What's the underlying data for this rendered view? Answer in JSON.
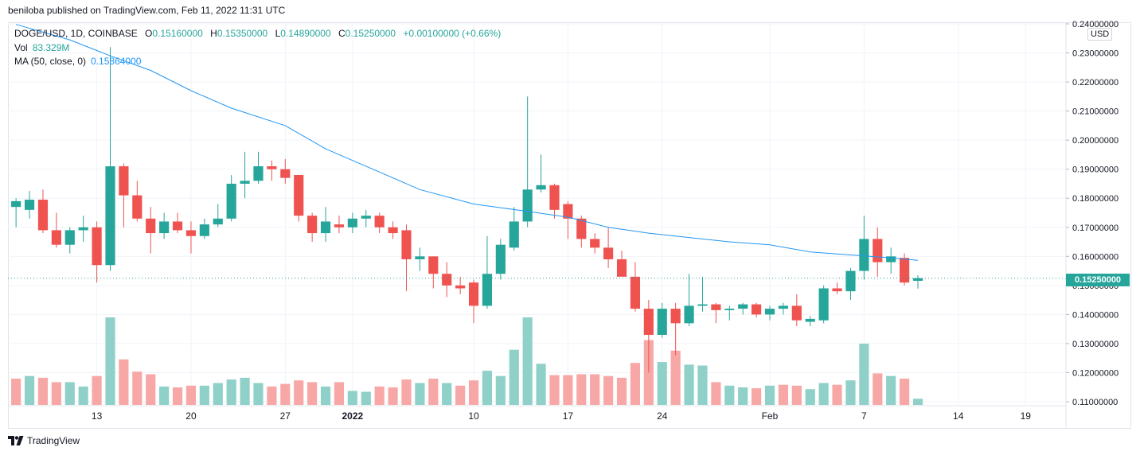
{
  "publisher_text": "beniloba published on TradingView.com, Feb 11, 2022 11:31 UTC",
  "brand_text": "TradingView",
  "currency_label": "USD",
  "current_price_label": "0.15250000",
  "legend": {
    "symbol": "DOGE/USD, 1D, COINBASE",
    "o_label": "O",
    "o_value": "0.15160000",
    "h_label": "H",
    "h_value": "0.15350000",
    "l_label": "L",
    "l_value": "0.14890000",
    "c_label": "C",
    "c_value": "0.15250000",
    "change": "+0.00100000 (+0.66%)",
    "vol_label": "Vol",
    "vol_value": "83.329M",
    "ma_label": "MA (50, close, 0)",
    "ma_value": "0.15864000"
  },
  "colors": {
    "up": "#26a69a",
    "down": "#ef5350",
    "up_vol": "#8fd0c9",
    "down_vol": "#f7a8a6",
    "ma": "#2196f3",
    "grid": "#f0f3fa",
    "axis": "#e0e3eb"
  },
  "chart_data": {
    "type": "candlestick",
    "title": "DOGE/USD, 1D, COINBASE",
    "ylim": [
      0.11,
      0.24
    ],
    "y_ticks": [
      "0.11000000",
      "0.12000000",
      "0.13000000",
      "0.14000000",
      "0.15000000",
      "0.16000000",
      "0.17000000",
      "0.18000000",
      "0.19000000",
      "0.20000000",
      "0.21000000",
      "0.22000000",
      "0.23000000",
      "0.24000000"
    ],
    "y_tick_values": [
      0.11,
      0.12,
      0.13,
      0.14,
      0.15,
      0.16,
      0.17,
      0.18,
      0.19,
      0.2,
      0.21,
      0.22,
      0.23,
      0.24
    ],
    "x_ticks": [
      {
        "label": "13",
        "index": 6
      },
      {
        "label": "20",
        "index": 13
      },
      {
        "label": "27",
        "index": 20
      },
      {
        "label": "2022",
        "index": 25
      },
      {
        "label": "10",
        "index": 34
      },
      {
        "label": "17",
        "index": 41
      },
      {
        "label": "24",
        "index": 48
      },
      {
        "label": "Feb",
        "index": 56
      },
      {
        "label": "7",
        "index": 63
      },
      {
        "label": "14",
        "index": 70
      },
      {
        "label": "19",
        "index": 75
      }
    ],
    "x_range": [
      -0.6,
      78
    ],
    "candles": [
      {
        "o": 0.177,
        "h": 0.18,
        "l": 0.17,
        "c": 0.179
      },
      {
        "o": 0.176,
        "h": 0.1825,
        "l": 0.173,
        "c": 0.1795
      },
      {
        "o": 0.1795,
        "h": 0.183,
        "l": 0.168,
        "c": 0.169
      },
      {
        "o": 0.169,
        "h": 0.175,
        "l": 0.163,
        "c": 0.164
      },
      {
        "o": 0.164,
        "h": 0.17,
        "l": 0.161,
        "c": 0.169
      },
      {
        "o": 0.169,
        "h": 0.174,
        "l": 0.165,
        "c": 0.17
      },
      {
        "o": 0.17,
        "h": 0.172,
        "l": 0.151,
        "c": 0.157
      },
      {
        "o": 0.157,
        "h": 0.232,
        "l": 0.155,
        "c": 0.191
      },
      {
        "o": 0.191,
        "h": 0.192,
        "l": 0.17,
        "c": 0.181
      },
      {
        "o": 0.181,
        "h": 0.186,
        "l": 0.172,
        "c": 0.173
      },
      {
        "o": 0.173,
        "h": 0.177,
        "l": 0.161,
        "c": 0.168
      },
      {
        "o": 0.168,
        "h": 0.175,
        "l": 0.166,
        "c": 0.172
      },
      {
        "o": 0.172,
        "h": 0.175,
        "l": 0.168,
        "c": 0.169
      },
      {
        "o": 0.169,
        "h": 0.172,
        "l": 0.161,
        "c": 0.167
      },
      {
        "o": 0.167,
        "h": 0.173,
        "l": 0.166,
        "c": 0.171
      },
      {
        "o": 0.171,
        "h": 0.178,
        "l": 0.17,
        "c": 0.173
      },
      {
        "o": 0.173,
        "h": 0.188,
        "l": 0.172,
        "c": 0.185
      },
      {
        "o": 0.185,
        "h": 0.196,
        "l": 0.18,
        "c": 0.186
      },
      {
        "o": 0.186,
        "h": 0.196,
        "l": 0.185,
        "c": 0.191
      },
      {
        "o": 0.191,
        "h": 0.193,
        "l": 0.186,
        "c": 0.19
      },
      {
        "o": 0.19,
        "h": 0.1935,
        "l": 0.185,
        "c": 0.187
      },
      {
        "o": 0.188,
        "h": 0.188,
        "l": 0.172,
        "c": 0.174
      },
      {
        "o": 0.174,
        "h": 0.175,
        "l": 0.165,
        "c": 0.168
      },
      {
        "o": 0.168,
        "h": 0.177,
        "l": 0.165,
        "c": 0.172
      },
      {
        "o": 0.171,
        "h": 0.174,
        "l": 0.168,
        "c": 0.17
      },
      {
        "o": 0.17,
        "h": 0.175,
        "l": 0.168,
        "c": 0.173
      },
      {
        "o": 0.173,
        "h": 0.176,
        "l": 0.17,
        "c": 0.174
      },
      {
        "o": 0.174,
        "h": 0.175,
        "l": 0.168,
        "c": 0.17
      },
      {
        "o": 0.17,
        "h": 0.172,
        "l": 0.166,
        "c": 0.168
      },
      {
        "o": 0.169,
        "h": 0.171,
        "l": 0.148,
        "c": 0.159
      },
      {
        "o": 0.159,
        "h": 0.163,
        "l": 0.155,
        "c": 0.16
      },
      {
        "o": 0.16,
        "h": 0.16,
        "l": 0.149,
        "c": 0.154
      },
      {
        "o": 0.154,
        "h": 0.158,
        "l": 0.146,
        "c": 0.15
      },
      {
        "o": 0.15,
        "h": 0.153,
        "l": 0.147,
        "c": 0.149
      },
      {
        "o": 0.151,
        "h": 0.152,
        "l": 0.137,
        "c": 0.143
      },
      {
        "o": 0.143,
        "h": 0.167,
        "l": 0.142,
        "c": 0.154
      },
      {
        "o": 0.154,
        "h": 0.166,
        "l": 0.152,
        "c": 0.164
      },
      {
        "o": 0.163,
        "h": 0.177,
        "l": 0.162,
        "c": 0.172
      },
      {
        "o": 0.172,
        "h": 0.215,
        "l": 0.17,
        "c": 0.183
      },
      {
        "o": 0.183,
        "h": 0.195,
        "l": 0.182,
        "c": 0.1845
      },
      {
        "o": 0.1845,
        "h": 0.185,
        "l": 0.173,
        "c": 0.176
      },
      {
        "o": 0.178,
        "h": 0.179,
        "l": 0.166,
        "c": 0.173
      },
      {
        "o": 0.173,
        "h": 0.174,
        "l": 0.163,
        "c": 0.166
      },
      {
        "o": 0.166,
        "h": 0.168,
        "l": 0.161,
        "c": 0.163
      },
      {
        "o": 0.163,
        "h": 0.17,
        "l": 0.156,
        "c": 0.159
      },
      {
        "o": 0.159,
        "h": 0.162,
        "l": 0.153,
        "c": 0.153
      },
      {
        "o": 0.153,
        "h": 0.158,
        "l": 0.141,
        "c": 0.142
      },
      {
        "o": 0.142,
        "h": 0.145,
        "l": 0.12,
        "c": 0.133
      },
      {
        "o": 0.133,
        "h": 0.144,
        "l": 0.132,
        "c": 0.142
      },
      {
        "o": 0.142,
        "h": 0.144,
        "l": 0.126,
        "c": 0.137
      },
      {
        "o": 0.137,
        "h": 0.154,
        "l": 0.136,
        "c": 0.143
      },
      {
        "o": 0.143,
        "h": 0.153,
        "l": 0.141,
        "c": 0.1435
      },
      {
        "o": 0.1435,
        "h": 0.144,
        "l": 0.137,
        "c": 0.1415
      },
      {
        "o": 0.1415,
        "h": 0.143,
        "l": 0.138,
        "c": 0.142
      },
      {
        "o": 0.142,
        "h": 0.144,
        "l": 0.14,
        "c": 0.1435
      },
      {
        "o": 0.1435,
        "h": 0.144,
        "l": 0.139,
        "c": 0.14
      },
      {
        "o": 0.14,
        "h": 0.143,
        "l": 0.138,
        "c": 0.142
      },
      {
        "o": 0.142,
        "h": 0.144,
        "l": 0.14,
        "c": 0.143
      },
      {
        "o": 0.143,
        "h": 0.147,
        "l": 0.136,
        "c": 0.138
      },
      {
        "o": 0.1375,
        "h": 0.1395,
        "l": 0.136,
        "c": 0.1385
      },
      {
        "o": 0.138,
        "h": 0.15,
        "l": 0.137,
        "c": 0.149
      },
      {
        "o": 0.149,
        "h": 0.151,
        "l": 0.147,
        "c": 0.148
      },
      {
        "o": 0.148,
        "h": 0.156,
        "l": 0.145,
        "c": 0.155
      },
      {
        "o": 0.155,
        "h": 0.174,
        "l": 0.152,
        "c": 0.166
      },
      {
        "o": 0.166,
        "h": 0.17,
        "l": 0.153,
        "c": 0.158
      },
      {
        "o": 0.158,
        "h": 0.163,
        "l": 0.154,
        "c": 0.16
      },
      {
        "o": 0.1595,
        "h": 0.161,
        "l": 0.15,
        "c": 0.151
      },
      {
        "o": 0.1516,
        "h": 0.1535,
        "l": 0.1489,
        "c": 0.1525
      }
    ],
    "volume_down_indices": [
      0,
      2,
      3,
      6,
      8,
      9,
      10,
      12,
      13,
      19,
      20,
      21,
      22,
      24,
      27,
      28,
      29,
      31,
      33,
      34,
      40,
      41,
      42,
      43,
      44,
      45,
      46,
      47,
      49,
      52,
      55,
      57,
      58,
      61,
      64,
      66
    ],
    "volume": [
      0.3,
      0.33,
      0.31,
      0.26,
      0.26,
      0.21,
      0.33,
      1.0,
      0.52,
      0.38,
      0.35,
      0.21,
      0.2,
      0.22,
      0.22,
      0.25,
      0.29,
      0.31,
      0.25,
      0.21,
      0.24,
      0.28,
      0.26,
      0.21,
      0.26,
      0.16,
      0.15,
      0.21,
      0.2,
      0.29,
      0.25,
      0.3,
      0.25,
      0.22,
      0.28,
      0.39,
      0.33,
      0.63,
      1.0,
      0.47,
      0.34,
      0.34,
      0.35,
      0.35,
      0.33,
      0.31,
      0.48,
      0.74,
      0.49,
      0.62,
      0.46,
      0.45,
      0.26,
      0.22,
      0.2,
      0.19,
      0.22,
      0.23,
      0.22,
      0.18,
      0.25,
      0.23,
      0.28,
      0.7,
      0.36,
      0.33,
      0.3,
      0.07
    ],
    "ma_50": [
      {
        "i": 0,
        "v": 0.2398
      },
      {
        "i": 4,
        "v": 0.2345
      },
      {
        "i": 7,
        "v": 0.229
      },
      {
        "i": 10,
        "v": 0.224
      },
      {
        "i": 13,
        "v": 0.217
      },
      {
        "i": 16,
        "v": 0.211
      },
      {
        "i": 20,
        "v": 0.205
      },
      {
        "i": 23,
        "v": 0.197
      },
      {
        "i": 27,
        "v": 0.189
      },
      {
        "i": 30,
        "v": 0.183
      },
      {
        "i": 34,
        "v": 0.178
      },
      {
        "i": 38,
        "v": 0.1755
      },
      {
        "i": 41,
        "v": 0.1735
      },
      {
        "i": 44,
        "v": 0.17
      },
      {
        "i": 47,
        "v": 0.168
      },
      {
        "i": 50,
        "v": 0.1665
      },
      {
        "i": 53,
        "v": 0.165
      },
      {
        "i": 56,
        "v": 0.164
      },
      {
        "i": 59,
        "v": 0.1615
      },
      {
        "i": 62,
        "v": 0.1605
      },
      {
        "i": 65,
        "v": 0.1595
      },
      {
        "i": 67,
        "v": 0.15864
      }
    ],
    "last_price": 0.1525
  }
}
